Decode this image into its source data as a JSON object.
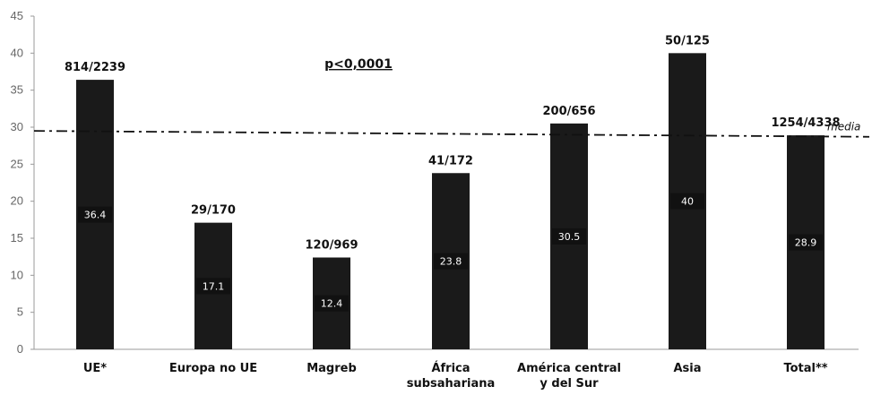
{
  "chart_data": {
    "type": "bar",
    "categories": [
      [
        "UE*"
      ],
      [
        "Europa no UE"
      ],
      [
        "Magreb"
      ],
      [
        "África",
        "subsahariana"
      ],
      [
        "América central",
        "y del Sur"
      ],
      [
        "Asia"
      ],
      [
        "Total**"
      ]
    ],
    "values": [
      36.4,
      17.1,
      12.4,
      23.8,
      30.5,
      40,
      28.9
    ],
    "value_labels": [
      "36.4",
      "17.1",
      "12.4",
      "23.8",
      "30.5",
      "40",
      "28.9"
    ],
    "top_labels": [
      "814/2239",
      "29/170",
      "120/969",
      "41/172",
      "200/656",
      "50/125",
      "1254/4338"
    ],
    "ylim": [
      0,
      45
    ],
    "yticks": [
      0,
      5,
      10,
      15,
      20,
      25,
      30,
      35,
      40,
      45
    ],
    "reference_line": {
      "label": "media",
      "start_value": 29.5,
      "end_value": 28.7
    },
    "annotation": "p<0,0001",
    "colors": {
      "bar": "#1a1a1a",
      "axis": "#9a9a9a",
      "value_box": "#111111",
      "reference_line": "#111111"
    },
    "grid": false,
    "legend": "none"
  }
}
